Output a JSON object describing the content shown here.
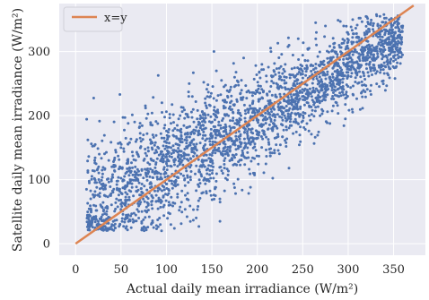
{
  "chart_data": {
    "type": "scatter",
    "title": "",
    "xlabel": "Actual daily mean irradiance (W/m²)",
    "ylabel": "Satellite daily mean irradiance (W/m²)",
    "xlim": [
      -18,
      385
    ],
    "ylim": [
      -18,
      375
    ],
    "xticks": [
      0,
      50,
      100,
      150,
      200,
      250,
      300,
      350
    ],
    "yticks": [
      0,
      100,
      200,
      300
    ],
    "grid": true,
    "legend": {
      "position": "top-left",
      "entries": [
        "x=y"
      ]
    },
    "colors": {
      "points": "#4c72b0",
      "reference_line": "#dd8452",
      "background": "#eaeaf2"
    },
    "series": [
      {
        "kind": "scatter",
        "approximate_points": [
          [
            15,
            45
          ],
          [
            20,
            60
          ],
          [
            25,
            35
          ],
          [
            30,
            90
          ],
          [
            35,
            55
          ],
          [
            40,
            120
          ],
          [
            45,
            70
          ],
          [
            50,
            150
          ],
          [
            55,
            80
          ],
          [
            60,
            100
          ],
          [
            65,
            190
          ],
          [
            70,
            95
          ],
          [
            75,
            130
          ],
          [
            80,
            60
          ],
          [
            85,
            170
          ],
          [
            90,
            110
          ],
          [
            95,
            220
          ],
          [
            100,
            125
          ],
          [
            105,
            150
          ],
          [
            110,
            90
          ],
          [
            115,
            200
          ],
          [
            120,
            140
          ],
          [
            125,
            250
          ],
          [
            130,
            155
          ],
          [
            135,
            175
          ],
          [
            140,
            130
          ],
          [
            145,
            230
          ],
          [
            150,
            165
          ],
          [
            155,
            270
          ],
          [
            160,
            180
          ],
          [
            165,
            200
          ],
          [
            170,
            150
          ],
          [
            175,
            260
          ],
          [
            180,
            190
          ],
          [
            185,
            290
          ],
          [
            190,
            205
          ],
          [
            195,
            220
          ],
          [
            200,
            175
          ],
          [
            205,
            280
          ],
          [
            210,
            215
          ],
          [
            215,
            300
          ],
          [
            220,
            230
          ],
          [
            225,
            245
          ],
          [
            230,
            200
          ],
          [
            235,
            310
          ],
          [
            240,
            250
          ],
          [
            245,
            320
          ],
          [
            250,
            265
          ],
          [
            255,
            275
          ],
          [
            260,
            230
          ],
          [
            265,
            330
          ],
          [
            270,
            280
          ],
          [
            275,
            340
          ],
          [
            280,
            290
          ],
          [
            285,
            300
          ],
          [
            290,
            250
          ],
          [
            295,
            340
          ],
          [
            300,
            305
          ],
          [
            305,
            350
          ],
          [
            310,
            315
          ],
          [
            315,
            320
          ],
          [
            320,
            280
          ],
          [
            325,
            345
          ],
          [
            330,
            330
          ],
          [
            335,
            355
          ],
          [
            340,
            340
          ],
          [
            345,
            330
          ],
          [
            350,
            350
          ],
          [
            355,
            345
          ],
          [
            360,
            340
          ]
        ]
      },
      {
        "kind": "line",
        "name": "x=y",
        "x": [
          0,
          372
        ],
        "y": [
          0,
          372
        ]
      }
    ]
  }
}
